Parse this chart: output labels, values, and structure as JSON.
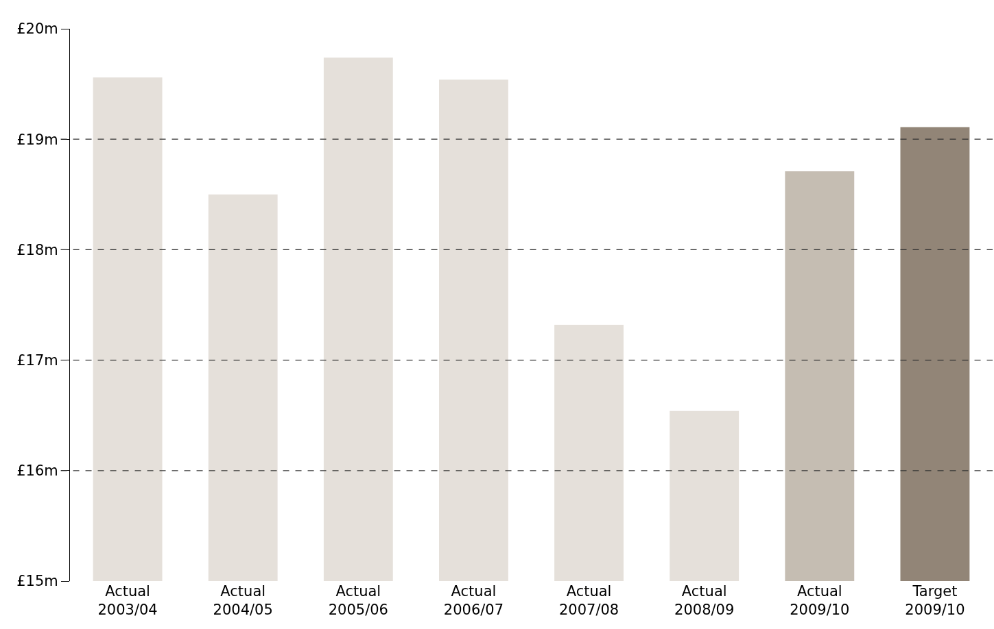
{
  "chart_data": {
    "type": "bar",
    "categories": [
      "Actual 2003/04",
      "Actual 2004/05",
      "Actual 2005/06",
      "Actual 2006/07",
      "Actual 2007/08",
      "Actual 2008/09",
      "Actual 2009/10",
      "Target 2009/10"
    ],
    "values": [
      19.56,
      18.5,
      19.74,
      19.54,
      17.32,
      16.54,
      18.71,
      19.11
    ],
    "colors": [
      "#e5e0da",
      "#e5e0da",
      "#e5e0da",
      "#e5e0da",
      "#e5e0da",
      "#e5e0da",
      "#c5bdb2",
      "#928577"
    ],
    "ylim": [
      15,
      20
    ],
    "yticks": [
      {
        "value": 15,
        "label": "£15m"
      },
      {
        "value": 16,
        "label": "£16m"
      },
      {
        "value": 17,
        "label": "£17m"
      },
      {
        "value": 18,
        "label": "£18m"
      },
      {
        "value": 19,
        "label": "£19m"
      },
      {
        "value": 20,
        "label": "£20m"
      }
    ],
    "grid": "y",
    "line_style": "dashed"
  }
}
